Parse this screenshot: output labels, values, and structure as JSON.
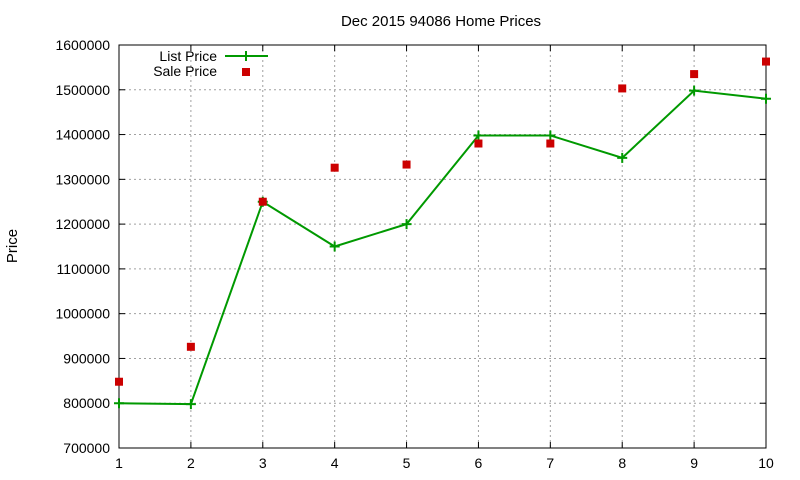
{
  "chart_data": {
    "type": "line",
    "title": "Dec 2015 94086 Home Prices",
    "xlabel": "",
    "ylabel": "Price",
    "xlim": [
      1,
      10
    ],
    "ylim": [
      700000,
      1600000
    ],
    "x_ticks": [
      "1",
      "2",
      "3",
      "4",
      "5",
      "6",
      "7",
      "8",
      "9",
      "10"
    ],
    "y_ticks": [
      "700000",
      "800000",
      "900000",
      "1000000",
      "1100000",
      "1200000",
      "1300000",
      "1400000",
      "1500000",
      "1600000"
    ],
    "grid": true,
    "legend_position": "top-left",
    "series": [
      {
        "name": "List Price",
        "style": "line-with-plus-markers",
        "color": "#009900",
        "points": [
          {
            "x": 1,
            "y": 800000
          },
          {
            "x": 2,
            "y": 798000
          },
          {
            "x": 3,
            "y": 1250000
          },
          {
            "x": 4,
            "y": 1150000
          },
          {
            "x": 5,
            "y": 1200000
          },
          {
            "x": 6,
            "y": 1398000
          },
          {
            "x": 7,
            "y": 1398000
          },
          {
            "x": 8,
            "y": 1348000
          },
          {
            "x": 9,
            "y": 1498000
          },
          {
            "x": 10,
            "y": 1480000
          }
        ]
      },
      {
        "name": "Sale Price",
        "style": "square-markers",
        "color": "#cc0000",
        "points": [
          {
            "x": 1,
            "y": 848000
          },
          {
            "x": 2,
            "y": 926000
          },
          {
            "x": 3,
            "y": 1250000
          },
          {
            "x": 4,
            "y": 1326000
          },
          {
            "x": 5,
            "y": 1333000
          },
          {
            "x": 6,
            "y": 1380000
          },
          {
            "x": 7,
            "y": 1380000
          },
          {
            "x": 8,
            "y": 1503000
          },
          {
            "x": 9,
            "y": 1535000
          },
          {
            "x": 10,
            "y": 1563000
          }
        ]
      }
    ]
  }
}
